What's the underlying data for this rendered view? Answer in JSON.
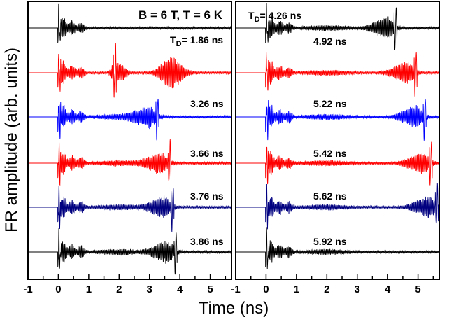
{
  "chart_data": {
    "type": "line",
    "subtype": "stacked waterfall of Faraday-rotation time traces (one trace per delay T_D)",
    "xlabel": "Time (ns)",
    "ylabel": "FR amplitude (arb. units)",
    "xlim": [
      -1,
      5.7
    ],
    "xticks": [
      -1,
      0,
      1,
      2,
      3,
      4,
      5
    ],
    "xtick_labels": [
      "-1",
      "0",
      "1",
      "2",
      "3",
      "4",
      "5"
    ],
    "grid": false,
    "legend": "none",
    "condition_label": "B = 6 T, T = 6 K",
    "panels": [
      {
        "id": "left",
        "series": [
          {
            "label": "",
            "color": "#000000",
            "pump_delay_ns": 0,
            "echo_center_ns": null,
            "echo_amplitude": 0
          },
          {
            "label": "1.86 ns",
            "label_prefix": "T",
            "label_sub": "D",
            "label_eq": "= 1.86 ns",
            "color": "#ff0000",
            "pump_delay_ns": 1.86,
            "echo_center_ns": 3.72,
            "echo_amplitude": 1.0
          },
          {
            "label": "3.26 ns",
            "color": "#0000ff",
            "pump_delay_ns": 3.26,
            "echo_center_ns": null,
            "echo_amplitude": 0
          },
          {
            "label": "3.66 ns",
            "color": "#ff0000",
            "pump_delay_ns": 3.66,
            "echo_center_ns": null,
            "echo_amplitude": 0
          },
          {
            "label": "3.76 ns",
            "color": "#000080",
            "pump_delay_ns": 3.76,
            "echo_center_ns": null,
            "echo_amplitude": 0
          },
          {
            "label": "3.86 ns",
            "color": "#000000",
            "pump_delay_ns": 3.86,
            "echo_center_ns": null,
            "echo_amplitude": 0
          }
        ]
      },
      {
        "id": "right",
        "series": [
          {
            "label": "4.26 ns",
            "label_prefix": "T",
            "label_sub": "D",
            "label_eq": "= 4.26 ns",
            "color": "#000000",
            "pump_delay_ns": 4.26,
            "echo_center_ns": null,
            "echo_amplitude": 0
          },
          {
            "label": "4.92 ns",
            "color": "#ff0000",
            "pump_delay_ns": 4.92,
            "echo_center_ns": null,
            "echo_amplitude": 0
          },
          {
            "label": "5.22 ns",
            "color": "#0000ff",
            "pump_delay_ns": 5.22,
            "echo_center_ns": null,
            "echo_amplitude": 0
          },
          {
            "label": "5.42 ns",
            "color": "#ff0000",
            "pump_delay_ns": 5.42,
            "echo_center_ns": null,
            "echo_amplitude": 0
          },
          {
            "label": "5.62 ns",
            "color": "#000080",
            "pump_delay_ns": 5.62,
            "echo_center_ns": null,
            "echo_amplitude": 0
          },
          {
            "label": "5.92 ns",
            "color": "#000000",
            "pump_delay_ns": 5.92,
            "echo_center_ns": null,
            "echo_amplitude": 0
          }
        ]
      }
    ]
  }
}
